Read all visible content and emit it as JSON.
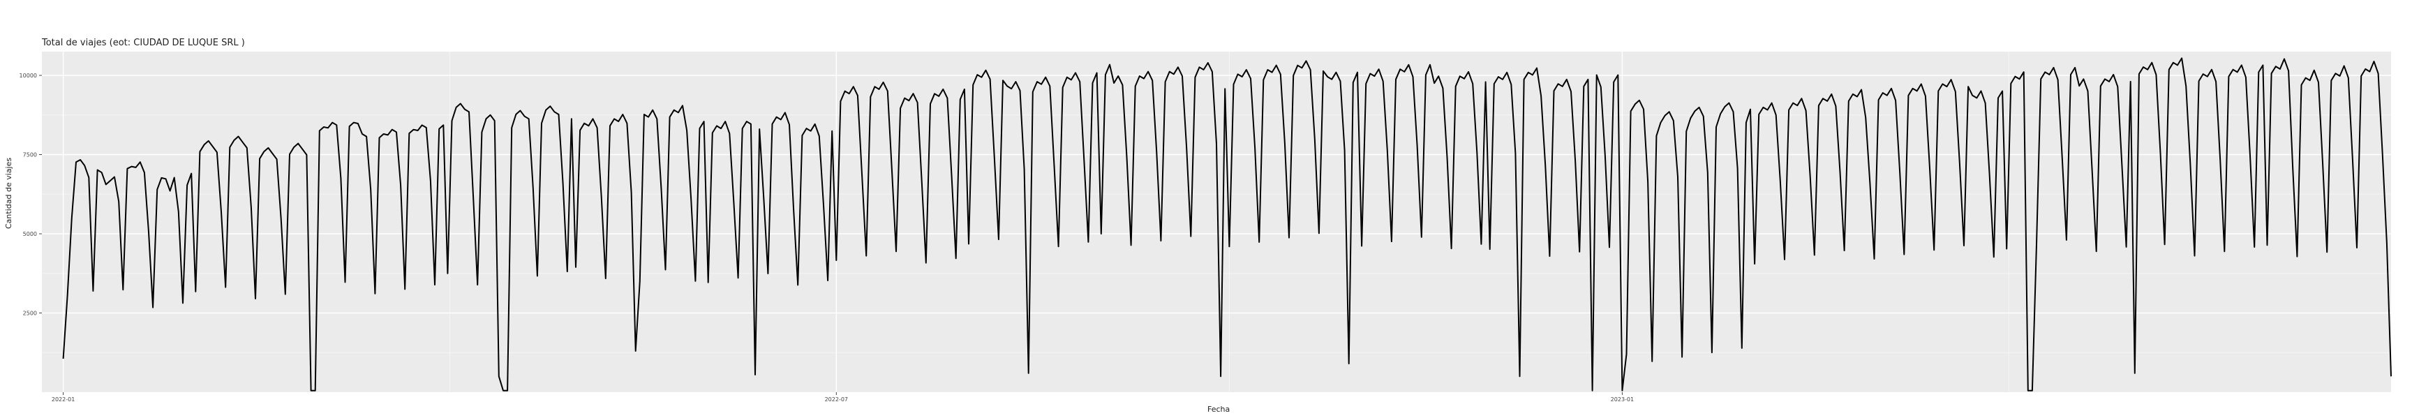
{
  "chart_data": {
    "type": "line",
    "title": "Total de viajes (eot: CIUDAD DE LUQUE SRL )",
    "xlabel": "Fecha",
    "ylabel": "Cantidad de viajes",
    "x_start": "2021-12-27",
    "x_end": "2023-06-30",
    "y_ticks": [
      2500,
      5000,
      7500,
      10000
    ],
    "y_tick_labels": [
      "2500",
      "5000",
      "7500",
      "10000"
    ],
    "x_ticks": [
      "2022-01-01",
      "2022-07-01",
      "2023-01-01"
    ],
    "x_tick_labels": [
      "2022-01",
      "2022-07",
      "2023-01"
    ],
    "ylim": [
      0,
      10750
    ],
    "grid": true,
    "background": "#EBEBEB",
    "line_color": "#000000",
    "series": [
      {
        "start_date": "2022-01-01",
        "weekly_profile": [
          {
            "from": "2022-01-01",
            "values": [
              1200,
              3200,
              5600,
              7350,
              7400,
              7200,
              6800
            ]
          },
          {
            "from": "2022-01-08",
            "values": [
              3200,
              7000,
              6900,
              6500,
              6600,
              6700,
              5900
            ]
          },
          {
            "from": "2022-01-15",
            "values": [
              3100,
              6900,
              6950,
              6900,
              7050,
              6700,
              5300
            ]
          },
          {
            "from": "2022-01-22",
            "values": [
              2900,
              6600,
              6950,
              6900,
              6500,
              6900,
              5800
            ]
          },
          {
            "from": "2022-02-01",
            "values": [
              3200,
              7600,
              7800,
              7900,
              7700,
              7500,
              5600
            ]
          },
          {
            "from": "2022-03-01",
            "values": [
              3300,
              8200,
              8300,
              8250,
              8400,
              8300,
              6600
            ]
          },
          {
            "from": "2022-04-01",
            "values": [
              3600,
              8400,
              8800,
              8900,
              8700,
              8600,
              6400
            ]
          },
          {
            "from": "2022-05-01",
            "values": [
              3700,
              8500,
              8700,
              8600,
              8800,
              8500,
              6300
            ]
          },
          {
            "from": "2022-06-01",
            "values": [
              3600,
              8300,
              8500,
              8400,
              8600,
              8200,
              6000
            ]
          },
          {
            "from": "2022-07-01",
            "values": [
              4200,
              9200,
              9500,
              9400,
              9600,
              9300,
              6800
            ]
          },
          {
            "from": "2022-08-01",
            "values": [
              4600,
              9600,
              9900,
              9800,
              10000,
              9700,
              7200
            ]
          },
          {
            "from": "2022-09-01",
            "values": [
              4800,
              9800,
              10100,
              10000,
              10200,
              9900,
              7600
            ]
          },
          {
            "from": "2022-10-01",
            "values": [
              4800,
              9900,
              10200,
              10100,
              10300,
              10000,
              7800
            ]
          },
          {
            "from": "2022-11-01",
            "values": [
              4700,
              9800,
              10100,
              10000,
              10200,
              9800,
              7600
            ]
          },
          {
            "from": "2022-12-01",
            "values": [
              4500,
              9700,
              9900,
              9800,
              10000,
              9600,
              7400
            ]
          },
          {
            "from": "2023-01-01",
            "values": [
              1200,
              8300,
              8700,
              8900,
              9000,
              8700,
              6900
            ]
          },
          {
            "from": "2023-02-01",
            "values": [
              4300,
              9000,
              9200,
              9100,
              9300,
              8900,
              6800
            ]
          },
          {
            "from": "2023-03-01",
            "values": [
              4400,
              9400,
              9600,
              9500,
              9700,
              9300,
              7000
            ]
          },
          {
            "from": "2023-04-01",
            "values": [
              4600,
              9800,
              10000,
              9900,
              10100,
              9700,
              7200
            ]
          },
          {
            "from": "2023-05-01",
            "values": [
              4500,
              10000,
              10200,
              10100,
              10300,
              9900,
              7400
            ]
          },
          {
            "from": "2023-06-01",
            "values": [
              4500,
              9900,
              10100,
              10000,
              10300,
              9900,
              7300
            ]
          }
        ],
        "overrides": {
          "2022-02-28": 50,
          "2022-03-01": 50,
          "2022-04-13": 500,
          "2022-04-14": 50,
          "2022-04-15": 50,
          "2022-05-15": 1300,
          "2022-05-16": 3500,
          "2022-06-12": 550,
          "2022-08-15": 600,
          "2022-09-29": 500,
          "2022-10-29": 900,
          "2022-12-08": 500,
          "2022-12-25": 50,
          "2023-01-01": 50,
          "2023-01-02": 1200,
          "2023-04-06": 50,
          "2023-04-07": 50,
          "2023-05-01": 600,
          "2023-06-30": 500
        },
        "end_date": "2023-06-30"
      }
    ]
  }
}
